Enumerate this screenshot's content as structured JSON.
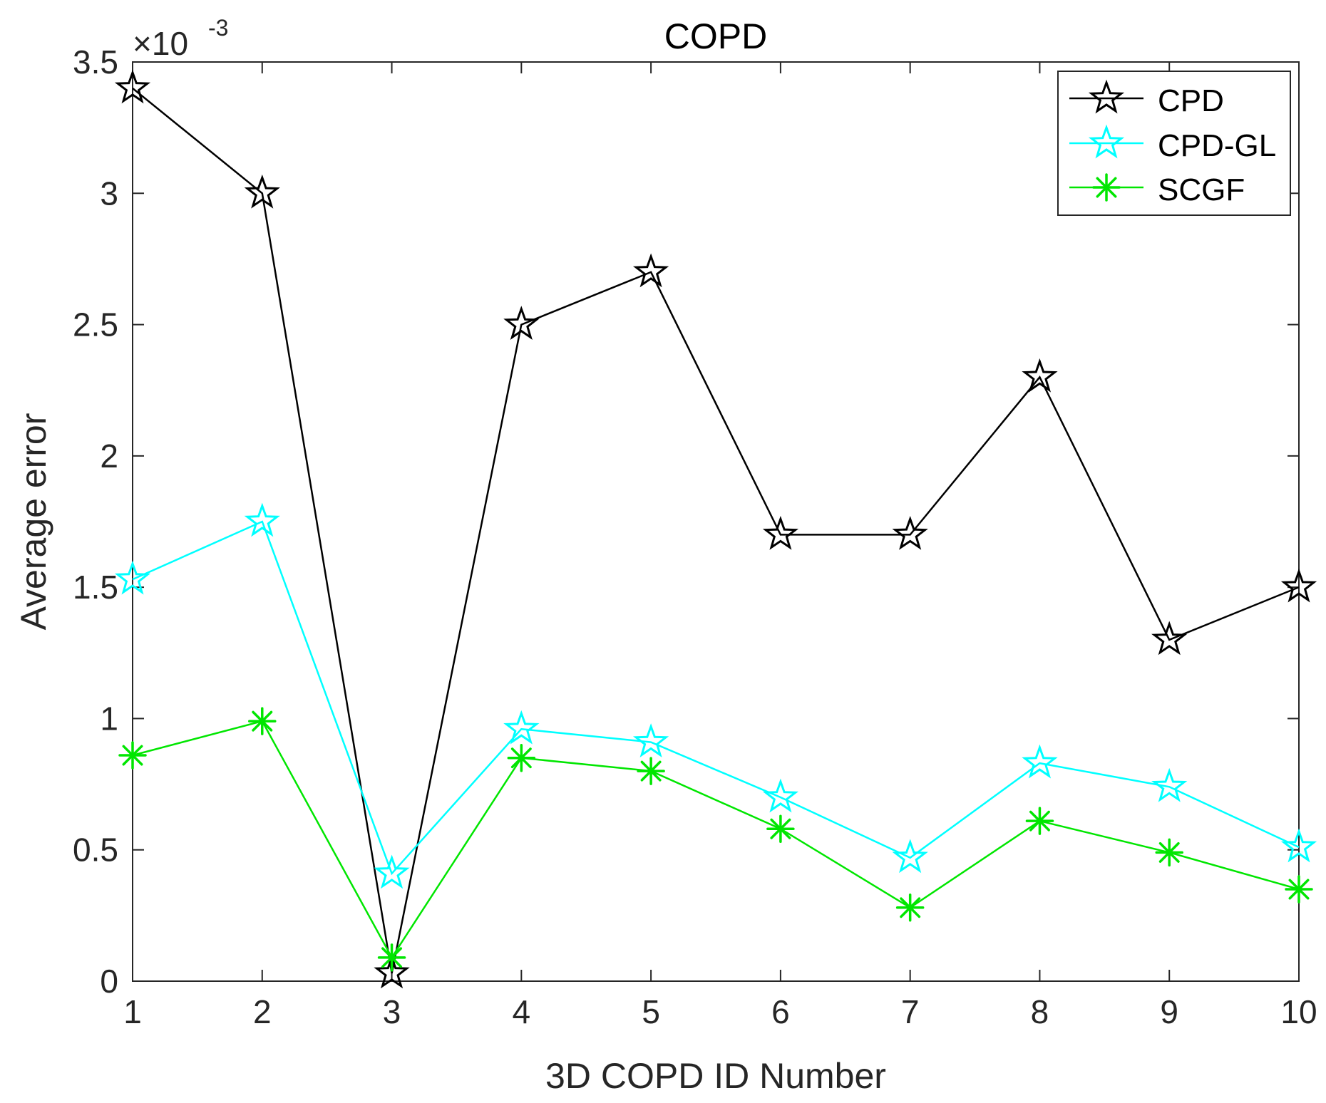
{
  "chart_data": {
    "type": "line",
    "title": "COPD",
    "xlabel": "3D COPD ID Number",
    "ylabel": "Average error",
    "x": [
      1,
      2,
      3,
      4,
      5,
      6,
      7,
      8,
      9,
      10
    ],
    "xlim": [
      1,
      10
    ],
    "ylim": [
      0,
      3.5
    ],
    "y_exponent_prefix": "×10",
    "y_exponent_power": "-3",
    "x_ticks": [
      "1",
      "2",
      "3",
      "4",
      "5",
      "6",
      "7",
      "8",
      "9",
      "10"
    ],
    "y_ticks": [
      "0",
      "0.5",
      "1",
      "1.5",
      "2",
      "2.5",
      "3",
      "3.5"
    ],
    "grid": false,
    "legend_position": "top-right",
    "series": [
      {
        "name": "CPD",
        "color": "#000000",
        "marker": "star",
        "values": [
          3.4,
          3.0,
          0.03,
          2.5,
          2.7,
          1.7,
          1.7,
          2.3,
          1.3,
          1.5
        ]
      },
      {
        "name": "CPD-GL",
        "color": "#00ffff",
        "marker": "star",
        "values": [
          1.53,
          1.75,
          0.41,
          0.96,
          0.91,
          0.7,
          0.47,
          0.83,
          0.74,
          0.51
        ]
      },
      {
        "name": "SCGF",
        "color": "#00e600",
        "marker": "asterisk",
        "values": [
          0.86,
          0.99,
          0.09,
          0.85,
          0.8,
          0.58,
          0.28,
          0.61,
          0.49,
          0.35
        ]
      }
    ]
  }
}
